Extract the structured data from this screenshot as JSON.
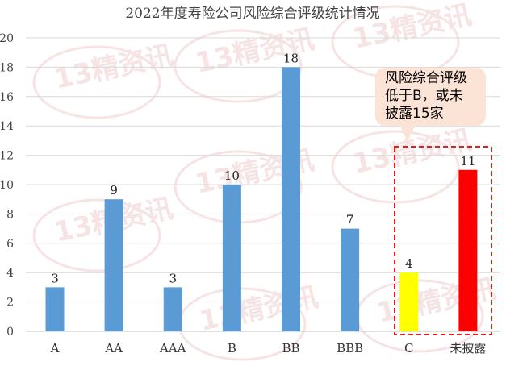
{
  "chart_data": {
    "type": "bar",
    "title": "2022年度寿险公司风险综合评级统计情况",
    "xlabel": "",
    "ylabel": "",
    "ylim": [
      0,
      20
    ],
    "yticks": [
      0,
      2,
      4,
      6,
      8,
      10,
      12,
      14,
      16,
      18,
      20
    ],
    "grid": true,
    "legend": "none",
    "categories": [
      "A",
      "AA",
      "AAA",
      "B",
      "BB",
      "BBB",
      "C",
      "未披露"
    ],
    "values": [
      3,
      9,
      3,
      10,
      18,
      7,
      4,
      11
    ],
    "bar_colors": [
      "#5b9bd5",
      "#5b9bd5",
      "#5b9bd5",
      "#5b9bd5",
      "#5b9bd5",
      "#5b9bd5",
      "#ffff00",
      "#ff0000"
    ],
    "annotation": {
      "text": "风险综合评级\n低于B，或未\n披露15家",
      "box_color": "#fbe3d6",
      "highlight_color": "#e02020",
      "highlighted_categories": [
        "C",
        "未披露"
      ]
    },
    "watermark": "13精资讯"
  }
}
